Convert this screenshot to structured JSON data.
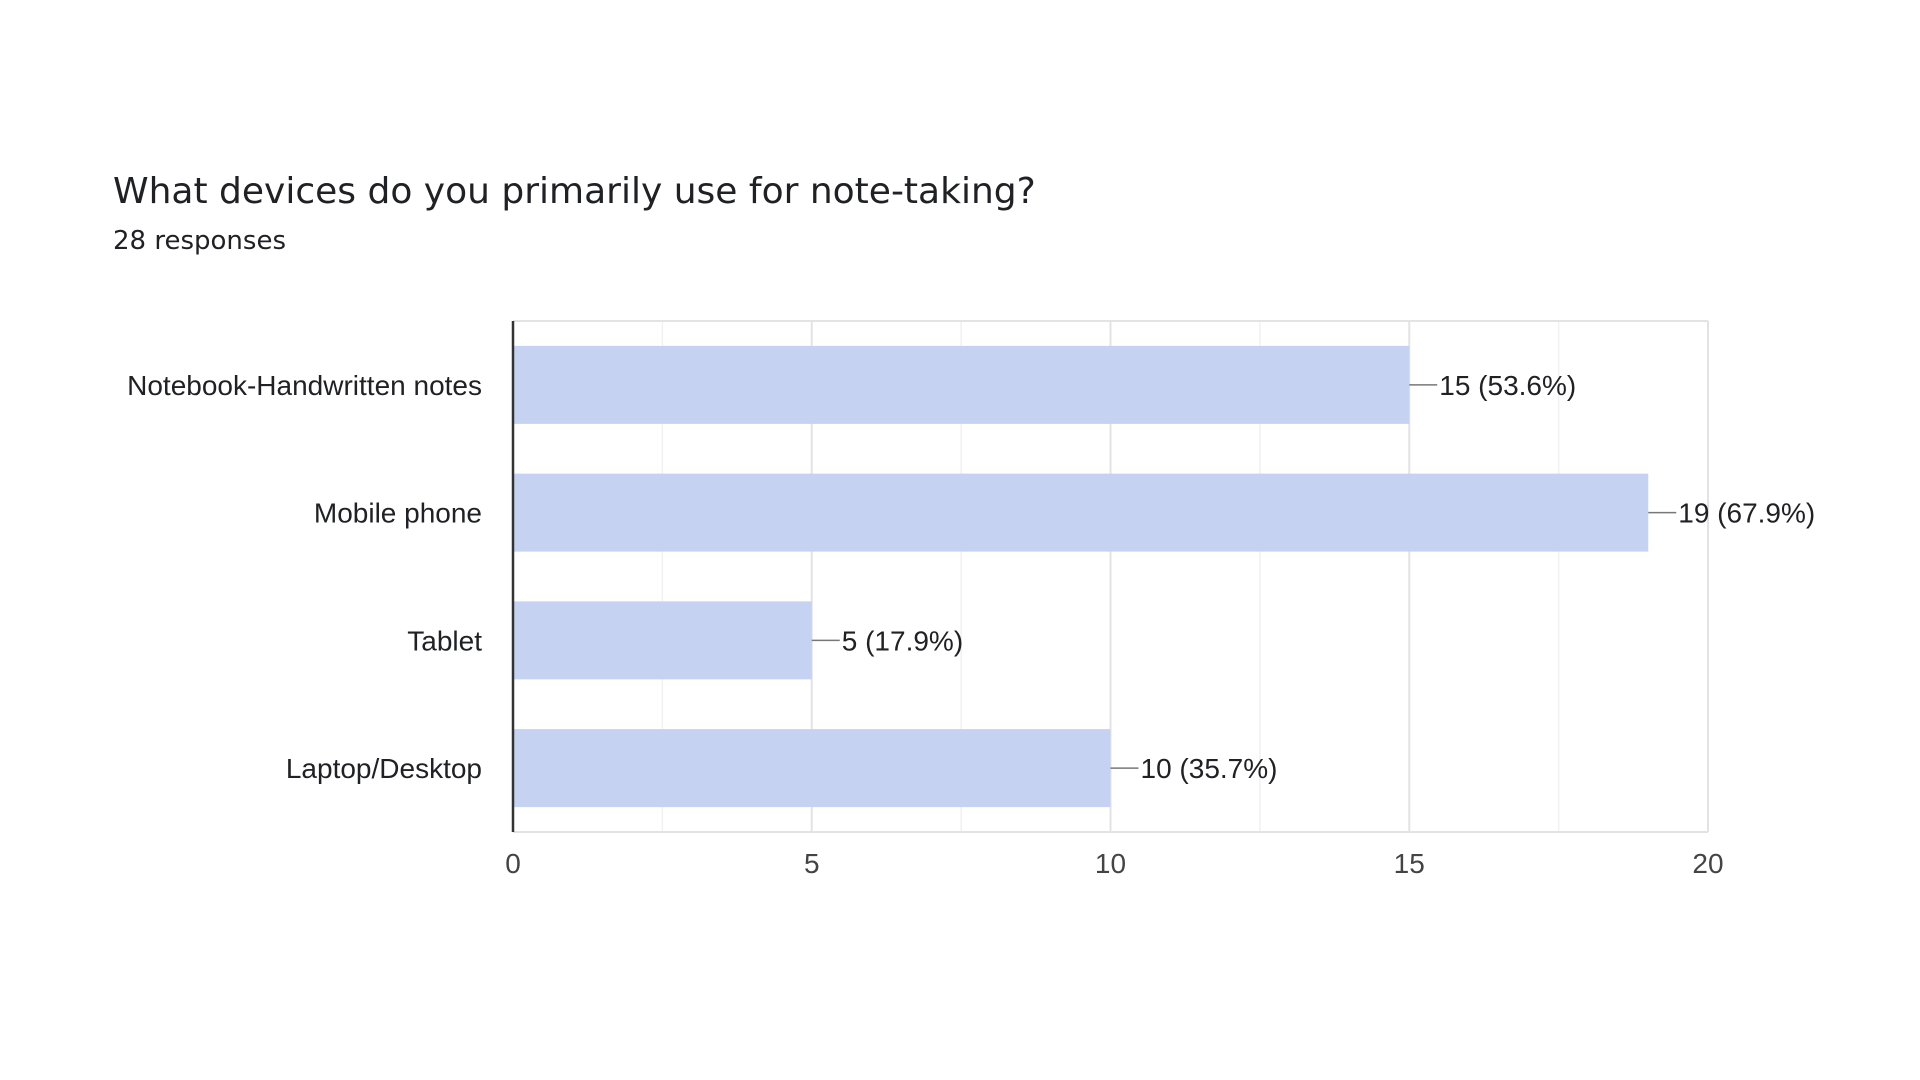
{
  "chart_data": {
    "type": "bar",
    "orientation": "horizontal",
    "title": "What devices do you primarily use for note-taking?",
    "subtitle": "28 responses",
    "categories": [
      "Notebook-Handwritten notes",
      "Mobile phone",
      "Tablet",
      "Laptop/Desktop"
    ],
    "values": [
      15,
      19,
      5,
      10
    ],
    "data_labels": [
      "15 (53.6%)",
      "19 (67.9%)",
      "5 (17.9%)",
      "10 (35.7%)"
    ],
    "xlim": [
      0,
      20
    ],
    "xticks": [
      0,
      5,
      10,
      15,
      20
    ],
    "xlabel": "",
    "ylabel": "",
    "grid": true,
    "legend": "none",
    "colors": {
      "bar": "#c5d2f1",
      "grid_major": "#e3e3e3",
      "grid_minor": "#f1f1f1",
      "axis": "#333333",
      "leader": "#777777",
      "text": "#202124"
    }
  }
}
